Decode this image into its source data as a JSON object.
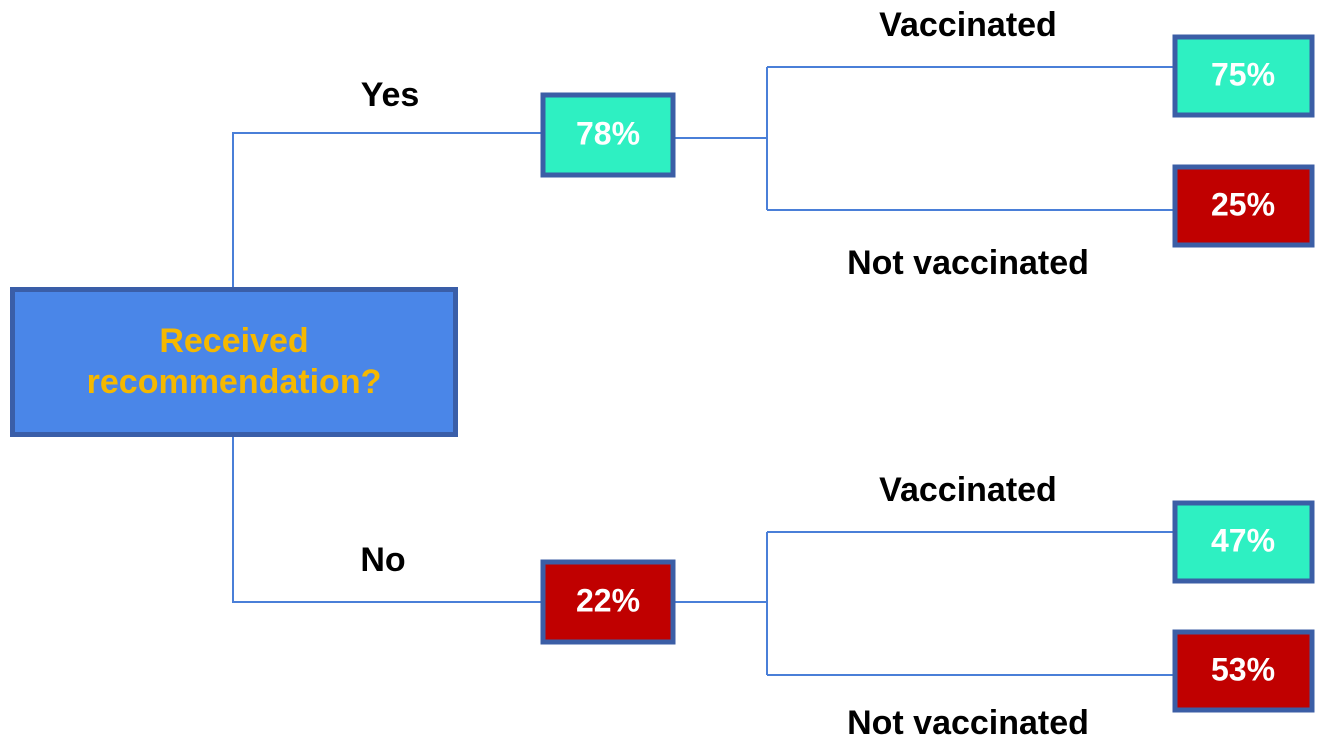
{
  "root": {
    "label": "Received recommendation?"
  },
  "branches": [
    {
      "label": "Yes",
      "value": "78%",
      "outcomes": [
        {
          "label": "Vaccinated",
          "value": "75%"
        },
        {
          "label": "Not vaccinated",
          "value": "25%"
        }
      ]
    },
    {
      "label": "No",
      "value": "22%",
      "outcomes": [
        {
          "label": "Vaccinated",
          "value": "47%"
        },
        {
          "label": "Not vaccinated",
          "value": "53%"
        }
      ]
    }
  ]
}
